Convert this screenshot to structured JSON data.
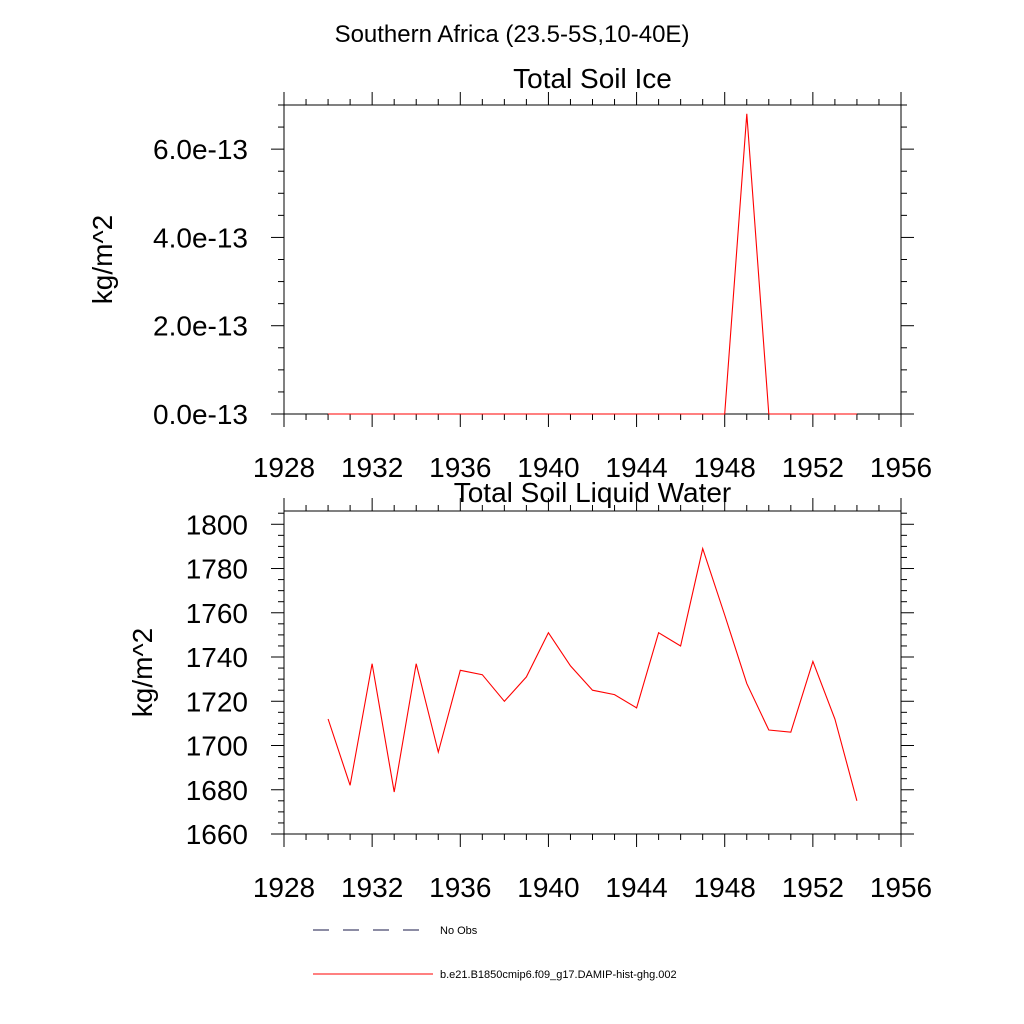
{
  "figure": {
    "title": "Southern Africa (23.5-5S,10-40E)"
  },
  "chart_data": [
    {
      "type": "line",
      "title": "Total Soil Ice",
      "xlabel": "",
      "ylabel": "kg/m^2",
      "xlim": [
        1928,
        1956
      ],
      "ylim": [
        0,
        7e-13
      ],
      "xticks": [
        1928,
        1932,
        1936,
        1940,
        1944,
        1948,
        1952,
        1956
      ],
      "xtick_labels": [
        "1928",
        "1932",
        "1936",
        "1940",
        "1944",
        "1948",
        "1952",
        "1956"
      ],
      "yticks": [
        0,
        2e-13,
        4e-13,
        6e-13
      ],
      "ytick_labels": [
        "0.0e-13",
        "2.0e-13",
        "4.0e-13",
        "6.0e-13"
      ],
      "grid": false,
      "x": [
        1930,
        1931,
        1932,
        1933,
        1934,
        1935,
        1936,
        1937,
        1938,
        1939,
        1940,
        1941,
        1942,
        1943,
        1944,
        1945,
        1946,
        1947,
        1948,
        1949,
        1950,
        1951,
        1952,
        1953,
        1954
      ],
      "series": [
        {
          "color": "#ff0000",
          "values": [
            0,
            0,
            0,
            0,
            0,
            0,
            0,
            0,
            0,
            0,
            0,
            0,
            0,
            0,
            0,
            0,
            0,
            0,
            0,
            6.8e-13,
            0,
            0,
            0,
            0,
            0
          ]
        }
      ]
    },
    {
      "type": "line",
      "title": "Total Soil Liquid Water",
      "xlabel": "",
      "ylabel": "kg/m^2",
      "xlim": [
        1928,
        1956
      ],
      "ylim": [
        1660,
        1806
      ],
      "xticks": [
        1928,
        1932,
        1936,
        1940,
        1944,
        1948,
        1952,
        1956
      ],
      "xtick_labels": [
        "1928",
        "1932",
        "1936",
        "1940",
        "1944",
        "1948",
        "1952",
        "1956"
      ],
      "yticks": [
        1660,
        1680,
        1700,
        1720,
        1740,
        1760,
        1780,
        1800
      ],
      "ytick_labels": [
        "1660",
        "1680",
        "1700",
        "1720",
        "1740",
        "1760",
        "1780",
        "1800"
      ],
      "grid": false,
      "x": [
        1930,
        1931,
        1932,
        1933,
        1934,
        1935,
        1936,
        1937,
        1938,
        1939,
        1940,
        1941,
        1942,
        1943,
        1944,
        1945,
        1946,
        1947,
        1948,
        1949,
        1950,
        1951,
        1952,
        1953,
        1954
      ],
      "series": [
        {
          "color": "#ff0000",
          "values": [
            1712,
            1682,
            1737,
            1679,
            1737,
            1697,
            1734,
            1732,
            1720,
            1731,
            1751,
            1736,
            1725,
            1723,
            1717,
            1751,
            1745,
            1789,
            1759,
            1728,
            1707,
            1706,
            1738,
            1712,
            1675
          ]
        }
      ]
    }
  ],
  "legend": {
    "placement": "bottom",
    "items": [
      {
        "label": "No Obs",
        "style": "dashed",
        "color": "#1a1a4a"
      },
      {
        "label": "b.e21.B1850cmip6.f09_g17.DAMIP-hist-ghg.002",
        "style": "solid",
        "color": "#ff0000"
      }
    ]
  }
}
